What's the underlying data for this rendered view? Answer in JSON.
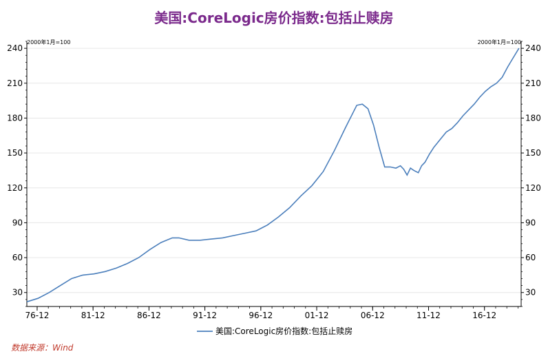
{
  "source": "数据来源：Wind",
  "chart_data": {
    "type": "line",
    "title": "美国:CoreLogic房价指数:包括止赎房",
    "unit_left": "2000年1月=100",
    "unit_right": "2000年1月=100",
    "y_ticks": [
      30,
      60,
      90,
      120,
      150,
      180,
      210,
      240
    ],
    "ylim": [
      18,
      246
    ],
    "x_tick_labels": [
      "76-12",
      "81-12",
      "86-12",
      "91-12",
      "96-12",
      "01-12",
      "06-12",
      "11-12",
      "16-12"
    ],
    "x_tick_years": [
      1976.92,
      1981.92,
      1986.92,
      1991.92,
      1996.92,
      2001.92,
      2006.92,
      2011.92,
      2016.92
    ],
    "xlim": [
      1976.0,
      2020.2
    ],
    "legend_position": "bottom-center",
    "color": "#4a7ebb",
    "series": [
      {
        "name": "美国:CoreLogic房价指数:包括止赎房",
        "x": [
          1976.0,
          1977.0,
          1978.0,
          1979.0,
          1980.0,
          1981.0,
          1982.0,
          1983.0,
          1984.0,
          1985.0,
          1986.0,
          1987.0,
          1988.0,
          1989.0,
          1989.6,
          1990.5,
          1991.5,
          1992.5,
          1993.5,
          1994.5,
          1995.5,
          1996.5,
          1997.5,
          1998.5,
          1999.5,
          2000.5,
          2001.5,
          2002.5,
          2003.5,
          2004.5,
          2005.5,
          2006.0,
          2006.5,
          2007.0,
          2007.5,
          2008.0,
          2008.5,
          2009.0,
          2009.4,
          2009.7,
          2010.0,
          2010.3,
          2010.6,
          2011.0,
          2011.3,
          2011.6,
          2012.0,
          2012.4,
          2013.0,
          2013.5,
          2014.0,
          2014.5,
          2015.0,
          2015.5,
          2016.0,
          2016.5,
          2017.0,
          2017.5,
          2018.0,
          2018.5,
          2019.0,
          2019.5,
          2020.0
        ],
        "values": [
          22,
          25,
          30,
          36,
          42,
          45,
          46,
          48,
          51,
          55,
          60,
          67,
          73,
          77,
          77,
          75,
          75,
          76,
          77,
          79,
          81,
          83,
          88,
          95,
          103,
          113,
          122,
          134,
          152,
          172,
          191,
          192,
          188,
          174,
          155,
          138,
          138,
          137,
          139,
          136,
          131,
          137,
          135,
          133,
          139,
          142,
          149,
          155,
          162,
          168,
          171,
          176,
          182,
          187,
          192,
          198,
          203,
          207,
          210,
          215,
          224,
          232,
          240
        ]
      }
    ]
  }
}
